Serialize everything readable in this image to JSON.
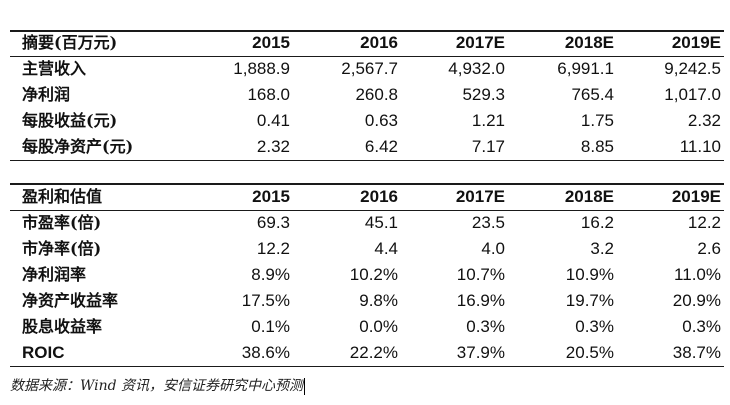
{
  "table1": {
    "header": [
      "摘要(百万元)",
      "2015",
      "2016",
      "2017E",
      "2018E",
      "2019E"
    ],
    "rows": [
      [
        "主营收入",
        "1,888.9",
        "2,567.7",
        "4,932.0",
        "6,991.1",
        "9,242.5"
      ],
      [
        "净利润",
        "168.0",
        "260.8",
        "529.3",
        "765.4",
        "1,017.0"
      ],
      [
        "每股收益(元)",
        "0.41",
        "0.63",
        "1.21",
        "1.75",
        "2.32"
      ],
      [
        "每股净资产(元)",
        "2.32",
        "6.42",
        "7.17",
        "8.85",
        "11.10"
      ]
    ]
  },
  "table2": {
    "header": [
      "盈利和估值",
      "2015",
      "2016",
      "2017E",
      "2018E",
      "2019E"
    ],
    "rows": [
      [
        "市盈率(倍)",
        "69.3",
        "45.1",
        "23.5",
        "16.2",
        "12.2"
      ],
      [
        "市净率(倍)",
        "12.2",
        "4.4",
        "4.0",
        "3.2",
        "2.6"
      ],
      [
        "净利润率",
        "8.9%",
        "10.2%",
        "10.7%",
        "10.9%",
        "11.0%"
      ],
      [
        "净资产收益率",
        "17.5%",
        "9.8%",
        "16.9%",
        "19.7%",
        "20.9%"
      ],
      [
        "股息收益率",
        "0.1%",
        "0.0%",
        "0.3%",
        "0.3%",
        "0.3%"
      ],
      [
        "ROIC",
        "38.6%",
        "22.2%",
        "37.9%",
        "20.5%",
        "38.7%"
      ]
    ]
  },
  "source": "数据来源：Wind 资讯，安信证券研究中心预测"
}
